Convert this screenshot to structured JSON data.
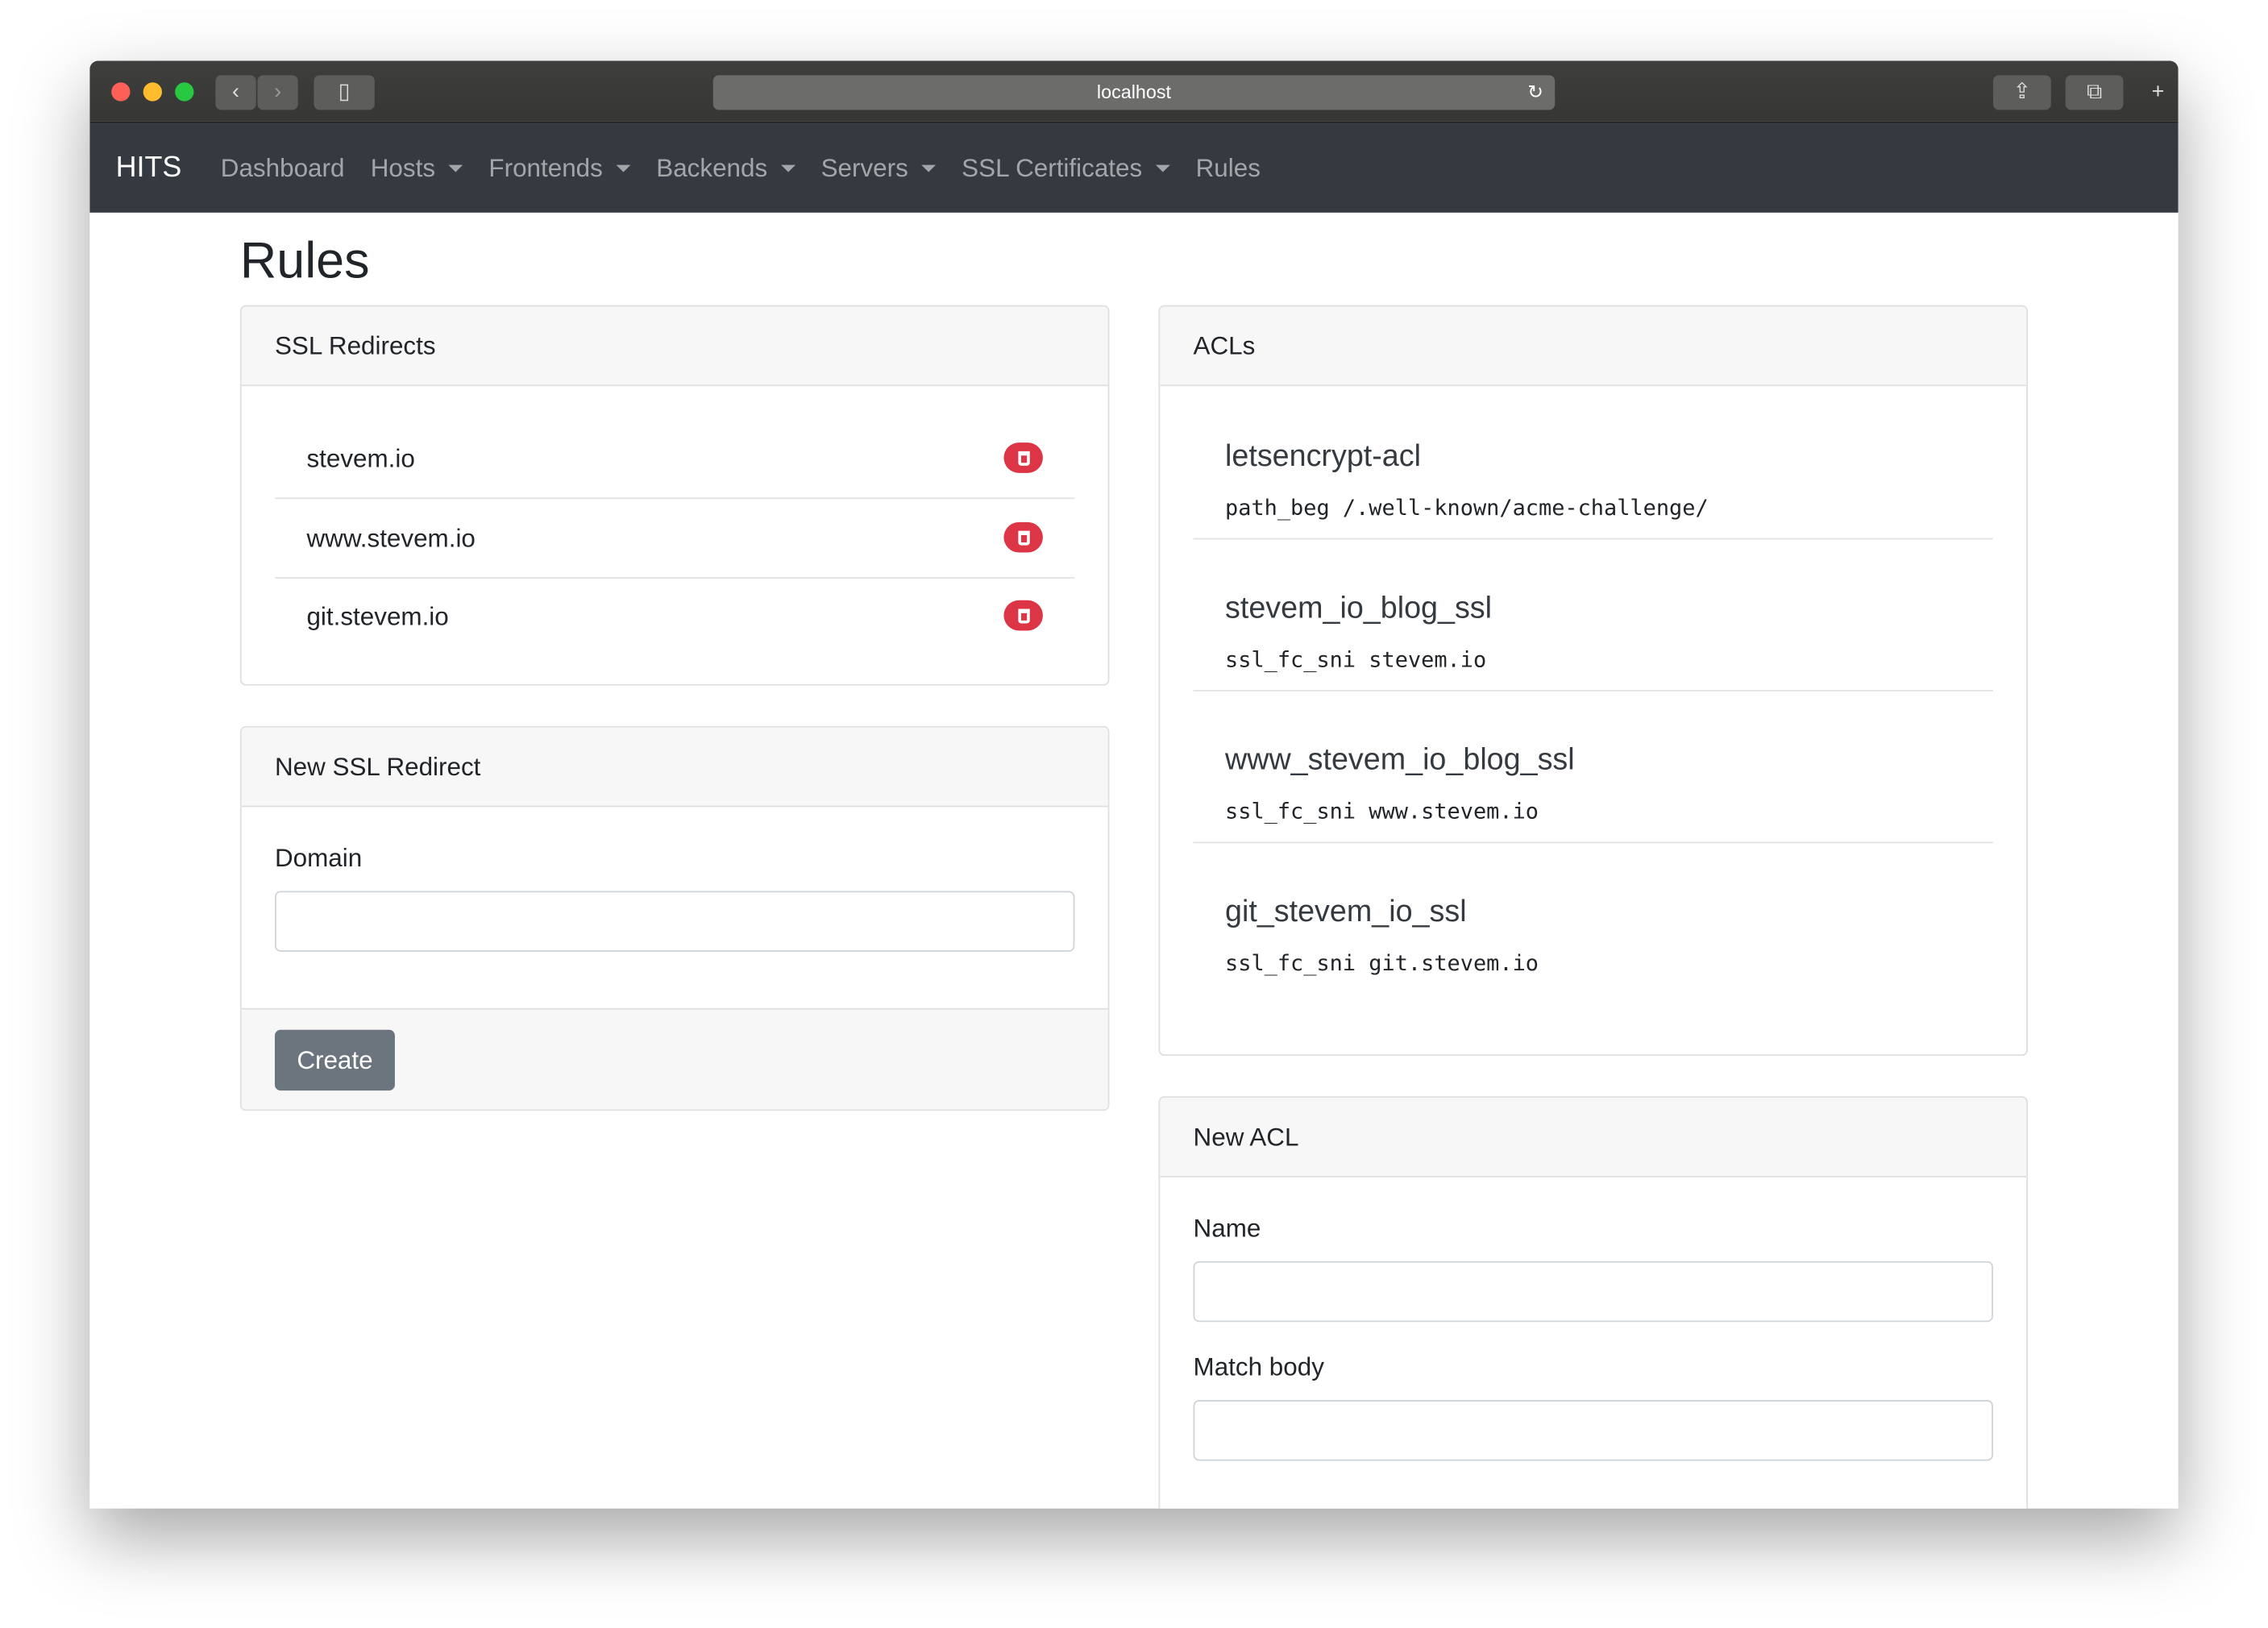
{
  "browser": {
    "url": "localhost"
  },
  "navbar": {
    "brand": "HITS",
    "items": [
      {
        "label": "Dashboard",
        "dropdown": false
      },
      {
        "label": "Hosts",
        "dropdown": true
      },
      {
        "label": "Frontends",
        "dropdown": true
      },
      {
        "label": "Backends",
        "dropdown": true
      },
      {
        "label": "Servers",
        "dropdown": true
      },
      {
        "label": "SSL Certificates",
        "dropdown": true
      },
      {
        "label": "Rules",
        "dropdown": false
      }
    ]
  },
  "page": {
    "title": "Rules"
  },
  "ssl_redirects": {
    "title": "SSL Redirects",
    "items": [
      "stevem.io",
      "www.stevem.io",
      "git.stevem.io"
    ]
  },
  "new_ssl_redirect": {
    "title": "New SSL Redirect",
    "domain_label": "Domain",
    "domain_value": "",
    "create_label": "Create"
  },
  "acls": {
    "title": "ACLs",
    "items": [
      {
        "name": "letsencrypt-acl",
        "body": "path_beg /.well-known/acme-challenge/"
      },
      {
        "name": "stevem_io_blog_ssl",
        "body": "ssl_fc_sni stevem.io"
      },
      {
        "name": "www_stevem_io_blog_ssl",
        "body": "ssl_fc_sni www.stevem.io"
      },
      {
        "name": "git_stevem_io_ssl",
        "body": "ssl_fc_sni git.stevem.io"
      }
    ]
  },
  "new_acl": {
    "title": "New ACL",
    "name_label": "Name",
    "name_value": "",
    "match_label": "Match body",
    "match_value": ""
  },
  "colors": {
    "navbar": "#343a40",
    "danger": "#dc3545",
    "secondary": "#6c757d"
  }
}
